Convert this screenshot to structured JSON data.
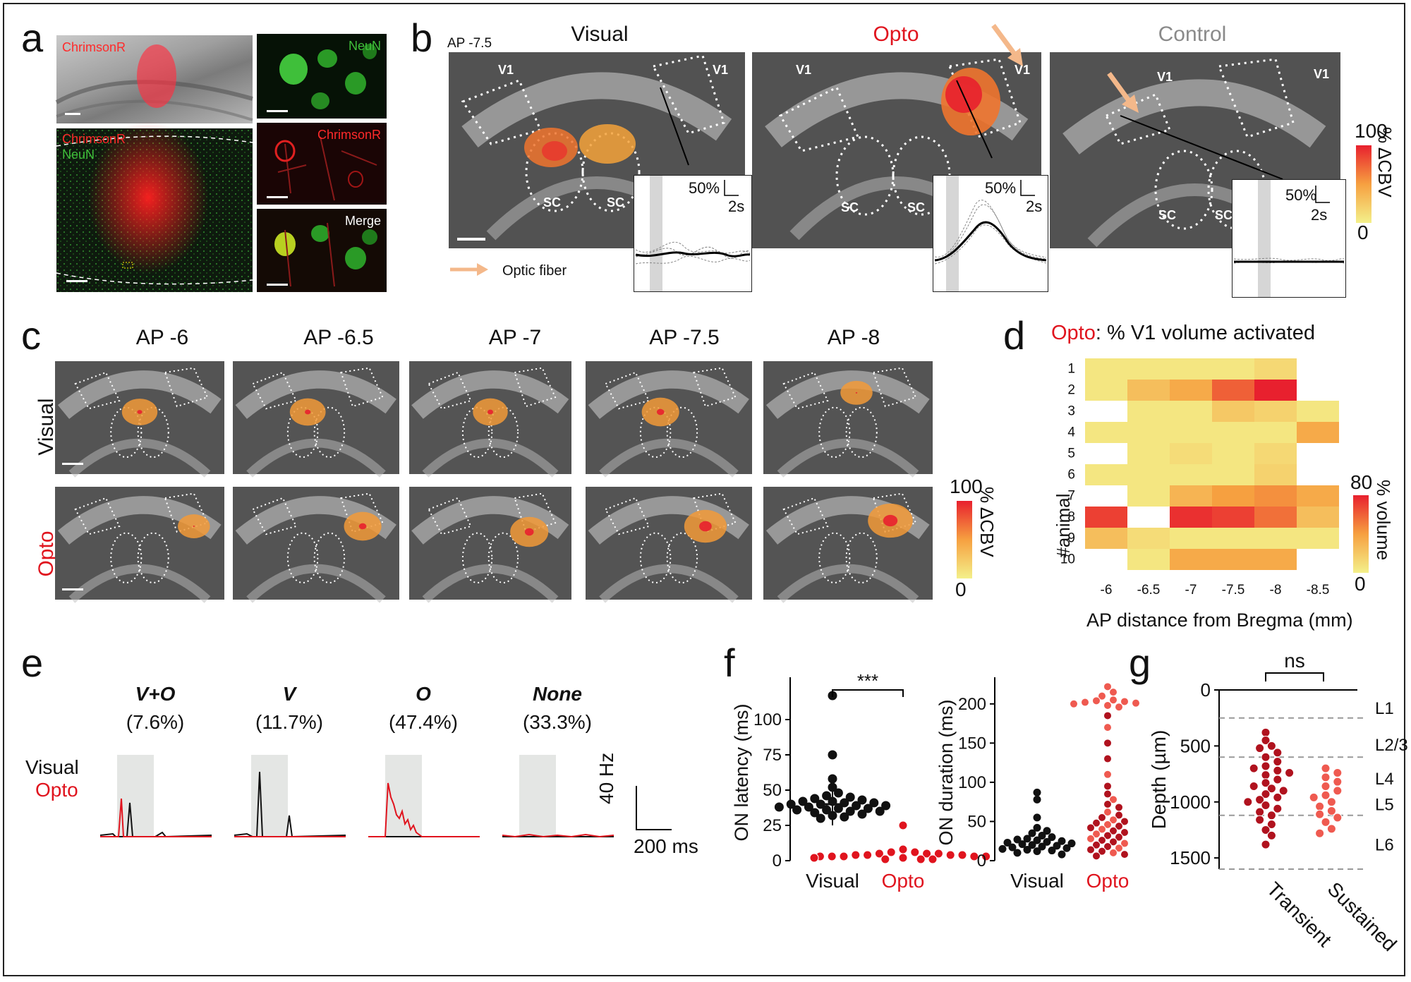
{
  "panels": {
    "a": "a",
    "b": "b",
    "c": "c",
    "d": "d",
    "e": "e",
    "f": "f",
    "g": "g"
  },
  "panel_a": {
    "top_label": "ChrimsonR",
    "bottom_label_1": "ChrimsonR",
    "bottom_label_2": "NeuN",
    "right_1": "NeuN",
    "right_2": "ChrimsonR",
    "right_3": "Merge"
  },
  "panel_b": {
    "ap": "AP -7.5",
    "titles": [
      "Visual",
      "Opto",
      "Control"
    ],
    "region_v1": "V1",
    "region_sc": "SC",
    "scale_pct": "50%",
    "scale_time": "2s",
    "fiber_legend": "Optic fiber",
    "colorbar_max": "100",
    "colorbar_min": "0",
    "colorbar_label": "% ΔCBV"
  },
  "panel_c": {
    "ap_titles": [
      "AP -6",
      "AP -6.5",
      "AP -7",
      "AP -7.5",
      "AP -8"
    ],
    "row_labels": [
      "Visual",
      "Opto"
    ],
    "colorbar_max": "100",
    "colorbar_min": "0",
    "colorbar_label": "% ΔCBV"
  },
  "panel_d": {
    "title_prefix": "Opto",
    "title_rest": ": % V1 volume activated",
    "y_label": "#animal",
    "x_label": "AP distance from Bregma (mm)",
    "colorbar_max": "80",
    "colorbar_min": "0",
    "colorbar_label": "% volume"
  },
  "panel_e": {
    "groups": [
      {
        "name": "V+O",
        "pct": "(7.6%)"
      },
      {
        "name": "V",
        "pct": "(11.7%)"
      },
      {
        "name": "O",
        "pct": "(47.4%)"
      },
      {
        "name": "None",
        "pct": "(33.3%)"
      }
    ],
    "legend_visual": "Visual",
    "legend_opto": "Opto",
    "scale_hz": "40 Hz",
    "scale_ms": "200 ms"
  },
  "panel_f": {
    "sig": "***",
    "left_ylabel": "ON latency (ms)",
    "right_ylabel": "ON duration (ms)",
    "x_visual": "Visual",
    "x_opto": "Opto"
  },
  "panel_g": {
    "sig": "ns",
    "ylabel": "Depth (µm)",
    "layers": [
      "L1",
      "L2/3",
      "L4",
      "L5",
      "L6"
    ],
    "x_transient": "Transient",
    "x_sustained": "Sustained"
  },
  "colors": {
    "red": "#e0141e",
    "dark_red": "#b0121e",
    "salmon": "#ef5a50",
    "fiber": "#f4b88a",
    "grey_title": "#8a8a8a",
    "green": "#3fbf3a"
  },
  "chart_data": [
    {
      "id": "d",
      "type": "heatmap",
      "title": "Opto: % V1 volume activated",
      "xlabel": "AP distance from Bregma (mm)",
      "ylabel": "#animal",
      "x": [
        "-6",
        "-6.5",
        "-7",
        "-7.5",
        "-8",
        "-8.5"
      ],
      "y": [
        "1",
        "2",
        "3",
        "4",
        "5",
        "6",
        "7",
        "8",
        "9",
        "10"
      ],
      "zlim": [
        0,
        80
      ],
      "values": [
        [
          5,
          5,
          5,
          5,
          12,
          null
        ],
        [
          5,
          25,
          35,
          60,
          80,
          null
        ],
        [
          null,
          5,
          5,
          20,
          15,
          5
        ],
        [
          5,
          5,
          5,
          5,
          5,
          35
        ],
        [
          null,
          5,
          10,
          5,
          12,
          null
        ],
        [
          5,
          5,
          5,
          5,
          15,
          null
        ],
        [
          null,
          5,
          30,
          40,
          45,
          35
        ],
        [
          70,
          null,
          75,
          70,
          55,
          25
        ],
        [
          25,
          10,
          5,
          5,
          5,
          5
        ],
        [
          null,
          5,
          35,
          35,
          35,
          null
        ]
      ]
    },
    {
      "id": "f-left",
      "type": "scatter",
      "ylabel": "ON latency (ms)",
      "categories": [
        "Visual",
        "Opto"
      ],
      "ylim": [
        0,
        125
      ],
      "yticks": [
        0,
        25,
        50,
        75,
        100
      ],
      "series": [
        {
          "name": "Visual",
          "values": [
            117,
            75,
            58,
            52,
            48,
            46,
            45,
            44,
            43,
            42,
            42,
            41,
            41,
            40,
            40,
            39,
            39,
            38,
            38,
            37,
            37,
            36,
            36,
            35,
            35,
            34,
            33,
            32,
            31,
            30
          ]
        },
        {
          "name": "Opto",
          "values": [
            25,
            8,
            6,
            6,
            5,
            5,
            5,
            4,
            4,
            4,
            4,
            3,
            3,
            3,
            3,
            3,
            2,
            2,
            2,
            2,
            1,
            1,
            1
          ]
        }
      ]
    },
    {
      "id": "f-right",
      "type": "scatter",
      "ylabel": "ON duration (ms)",
      "categories": [
        "Visual",
        "Opto"
      ],
      "ylim": [
        0,
        225
      ],
      "yticks": [
        0,
        50,
        100,
        150,
        200
      ],
      "series": [
        {
          "name": "Visual",
          "values": [
            87,
            78,
            55,
            42,
            38,
            35,
            32,
            30,
            28,
            27,
            26,
            25,
            24,
            23,
            22,
            21,
            20,
            19,
            18,
            17,
            16,
            15,
            14,
            13,
            12,
            10,
            8
          ]
        },
        {
          "name": "Opto",
          "values": [
            222,
            215,
            210,
            205,
            204,
            203,
            202,
            201,
            200,
            198,
            196,
            185,
            170,
            150,
            130,
            110,
            95,
            85,
            78,
            72,
            68,
            62,
            58,
            55,
            52,
            50,
            48,
            46,
            44,
            42,
            40,
            38,
            36,
            34,
            32,
            30,
            28,
            26,
            24,
            22,
            20,
            18,
            16,
            14,
            12,
            10,
            8,
            6
          ]
        }
      ]
    },
    {
      "id": "g",
      "type": "scatter",
      "ylabel": "Depth (µm)",
      "categories": [
        "Transient",
        "Sustained"
      ],
      "ylim": [
        1600,
        0
      ],
      "yticks": [
        0,
        500,
        1000,
        1500
      ],
      "layer_bounds": [
        250,
        600,
        1120,
        1600
      ],
      "series": [
        {
          "name": "Transient",
          "values": [
            380,
            450,
            500,
            520,
            560,
            600,
            640,
            680,
            700,
            720,
            740,
            760,
            800,
            830,
            860,
            880,
            900,
            930,
            960,
            980,
            1000,
            1030,
            1060,
            1090,
            1120,
            1160,
            1200,
            1250,
            1300,
            1380
          ]
        },
        {
          "name": "Sustained",
          "values": [
            700,
            740,
            780,
            820,
            860,
            900,
            940,
            960,
            1000,
            1040,
            1080,
            1110,
            1140,
            1180,
            1240,
            1280
          ]
        }
      ]
    },
    {
      "id": "e",
      "type": "line",
      "series_names": [
        "Visual",
        "Opto"
      ],
      "groups": [
        "V+O",
        "V",
        "O",
        "None"
      ]
    }
  ]
}
